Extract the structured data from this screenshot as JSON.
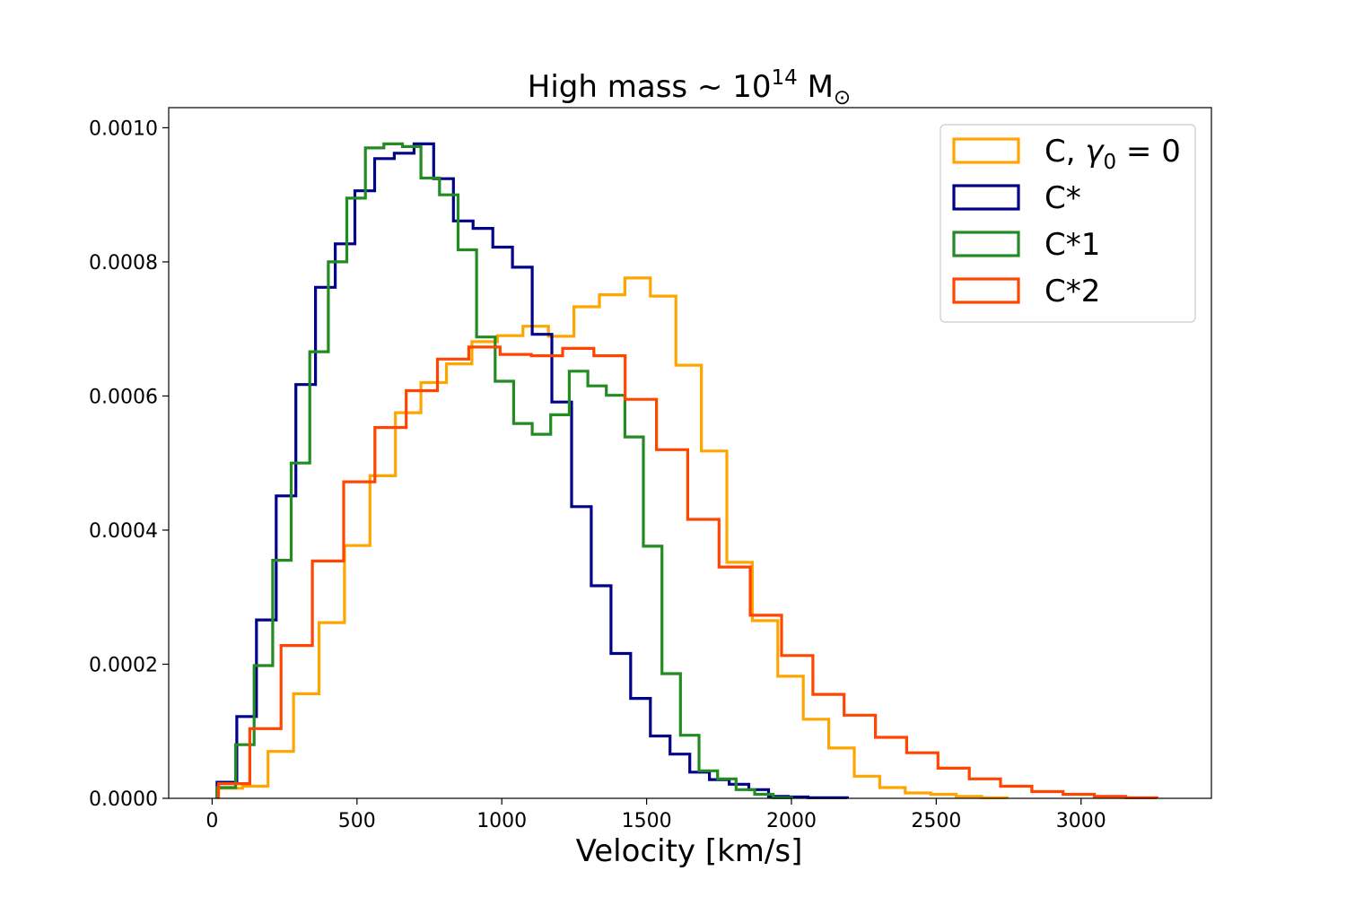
{
  "chart_data": {
    "type": "histogram-step",
    "title": {
      "prefix": "High mass  ~ 10",
      "exponent": "14",
      "unit": " M",
      "unit_subscript": "⊙"
    },
    "xlabel": "Velocity [km/s]",
    "ylabel": "",
    "xlim": [
      -150,
      3450
    ],
    "ylim": [
      0,
      0.00103
    ],
    "xticks": [
      0,
      500,
      1000,
      1500,
      2000,
      2500,
      3000
    ],
    "xtick_labels": [
      "0",
      "500",
      "1000",
      "1500",
      "2000",
      "2500",
      "3000"
    ],
    "yticks": [
      0,
      0.0002,
      0.0004,
      0.0006,
      0.0008,
      0.001
    ],
    "ytick_labels": [
      "0.0000",
      "0.0002",
      "0.0004",
      "0.0006",
      "0.0008",
      "0.0010"
    ],
    "grid": false,
    "legend_position": "top-right",
    "series": [
      {
        "name": "C, γ0 = 0",
        "label_parts": {
          "main": "C, ",
          "symbol": "γ",
          "subscript": "0",
          "tail": " = 0"
        },
        "color": "#ffa500",
        "edges": [
          17,
          105,
          193,
          281,
          369,
          457,
          545,
          633,
          721,
          809,
          897,
          985,
          1073,
          1161,
          1249,
          1337,
          1425,
          1513,
          1601,
          1689,
          1777,
          1865,
          1953,
          2041,
          2129,
          2217,
          2305,
          2393,
          2481,
          2569,
          2657,
          2745
        ],
        "values": [
          1.5e-05,
          1.8e-05,
          7e-05,
          0.000156,
          0.000262,
          0.000377,
          0.000481,
          0.000575,
          0.00062,
          0.000648,
          0.000681,
          0.00069,
          0.000704,
          0.000689,
          0.000733,
          0.000751,
          0.000776,
          0.000749,
          0.000646,
          0.000518,
          0.000352,
          0.000265,
          0.000182,
          0.000118,
          7.5e-05,
          3.3e-05,
          1.6e-05,
          8e-06,
          6e-06,
          3e-06,
          1e-06
        ]
      },
      {
        "name": "C*",
        "label_parts": {
          "main": "C*",
          "symbol": "",
          "subscript": "",
          "tail": ""
        },
        "color": "#00008b",
        "edges": [
          17,
          85,
          153,
          221,
          289,
          357,
          425,
          493,
          561,
          629,
          697,
          765,
          833,
          901,
          969,
          1037,
          1105,
          1173,
          1241,
          1309,
          1377,
          1445,
          1513,
          1581,
          1649,
          1717,
          1785,
          1853,
          1921,
          1989,
          2057,
          2125,
          2193
        ],
        "values": [
          2.4e-05,
          0.000122,
          0.000266,
          0.000451,
          0.000617,
          0.000762,
          0.000827,
          0.000906,
          0.000954,
          0.000962,
          0.000976,
          0.000924,
          0.000861,
          0.00085,
          0.000822,
          0.000792,
          0.000692,
          0.000591,
          0.000435,
          0.000317,
          0.000216,
          0.000149,
          9.3e-05,
          6.6e-05,
          3.9e-05,
          2.8e-05,
          2.1e-05,
          1.3e-05,
          3e-06,
          2e-06,
          1e-06,
          1e-06
        ]
      },
      {
        "name": "C*1",
        "label_parts": {
          "main": "C*1",
          "symbol": "",
          "subscript": "",
          "tail": ""
        },
        "color": "#228b22",
        "edges": [
          17,
          81,
          145,
          209,
          273,
          337,
          401,
          465,
          529,
          593,
          657,
          721,
          785,
          849,
          913,
          977,
          1041,
          1105,
          1169,
          1233,
          1297,
          1361,
          1425,
          1489,
          1553,
          1617,
          1681,
          1745,
          1809,
          1873,
          1937,
          2001
        ],
        "values": [
          1.6e-05,
          8e-05,
          0.000198,
          0.000355,
          0.0005,
          0.000666,
          0.0008,
          0.000895,
          0.00097,
          0.000976,
          0.000972,
          0.000925,
          0.0009,
          0.000818,
          0.000688,
          0.000622,
          0.000559,
          0.000543,
          0.000572,
          0.000637,
          0.000615,
          0.000601,
          0.000539,
          0.000376,
          0.000186,
          9.4e-05,
          4.1e-05,
          2.9e-05,
          1.3e-05,
          6e-06,
          1e-06
        ]
      },
      {
        "name": "C*2",
        "label_parts": {
          "main": "C*2",
          "symbol": "",
          "subscript": "",
          "tail": ""
        },
        "color": "#ff4500",
        "edges": [
          22,
          130,
          238,
          346,
          454,
          562,
          670,
          778,
          886,
          994,
          1102,
          1210,
          1318,
          1426,
          1534,
          1642,
          1750,
          1858,
          1966,
          2074,
          2182,
          2290,
          2398,
          2506,
          2614,
          2722,
          2830,
          2938,
          3046,
          3154,
          3262
        ],
        "values": [
          2.2e-05,
          0.000104,
          0.000228,
          0.000354,
          0.000472,
          0.000553,
          0.000608,
          0.000655,
          0.000673,
          0.000662,
          0.00066,
          0.000671,
          0.00066,
          0.000595,
          0.00052,
          0.000416,
          0.000345,
          0.000273,
          0.000213,
          0.000155,
          0.000124,
          9.1e-05,
          6.8e-05,
          4.5e-05,
          2.9e-05,
          1.8e-05,
          1e-05,
          6e-06,
          3e-06,
          1e-06
        ]
      }
    ]
  }
}
